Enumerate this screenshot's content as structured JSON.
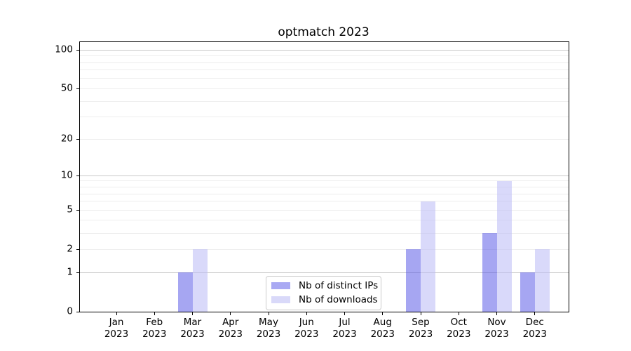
{
  "chart_data": {
    "type": "bar",
    "title": "optmatch 2023",
    "categories": [
      {
        "month": "Jan",
        "year": "2023"
      },
      {
        "month": "Feb",
        "year": "2023"
      },
      {
        "month": "Mar",
        "year": "2023"
      },
      {
        "month": "Apr",
        "year": "2023"
      },
      {
        "month": "May",
        "year": "2023"
      },
      {
        "month": "Jun",
        "year": "2023"
      },
      {
        "month": "Jul",
        "year": "2023"
      },
      {
        "month": "Aug",
        "year": "2023"
      },
      {
        "month": "Sep",
        "year": "2023"
      },
      {
        "month": "Oct",
        "year": "2023"
      },
      {
        "month": "Nov",
        "year": "2023"
      },
      {
        "month": "Dec",
        "year": "2023"
      }
    ],
    "series": [
      {
        "name": "Nb of distinct IPs",
        "color": "#a9a9f3",
        "fill": "rgba(85,85,230,0.52)",
        "values": [
          0,
          0,
          1,
          0,
          0,
          0,
          0,
          0,
          2,
          0,
          3,
          1
        ]
      },
      {
        "name": "Nb of downloads",
        "color": "#d9d9f9",
        "fill": "rgba(185,185,245,0.55)",
        "values": [
          0,
          0,
          2,
          0,
          0,
          0,
          0,
          0,
          6,
          0,
          9,
          2
        ]
      }
    ],
    "yscale": "log1p",
    "ylim": [
      0,
      115
    ],
    "y_ticks": [
      0,
      1,
      2,
      5,
      10,
      20,
      50,
      100
    ],
    "grid_major": [
      1,
      10,
      100
    ],
    "grid_minor": [
      2,
      3,
      4,
      5,
      6,
      7,
      8,
      9,
      20,
      30,
      40,
      50,
      60,
      70,
      80,
      90
    ],
    "legend_position": "lower center",
    "grid": "on"
  },
  "colors": {
    "grid_major": "#c9c9c9",
    "grid_minor": "#ededed",
    "spine": "#000000",
    "legend_border": "#cccccc",
    "background": "#ffffff"
  }
}
